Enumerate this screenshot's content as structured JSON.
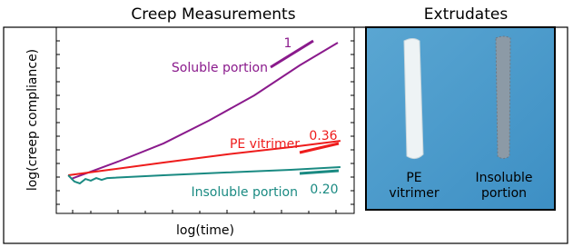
{
  "chart_data": {
    "type": "line",
    "title": "Creep Measurements",
    "xlabel": "log(time)",
    "ylabel": "log(creep compliance)",
    "xlim": [
      0,
      1
    ],
    "ylim": [
      0,
      1
    ],
    "series": [
      {
        "name": "Soluble portion",
        "color": "#8a1a8c",
        "x": [
          0.049,
          0.207,
          0.36,
          0.512,
          0.665,
          0.817,
          0.945
        ],
        "values": [
          0.185,
          0.278,
          0.376,
          0.498,
          0.634,
          0.795,
          0.917
        ]
      },
      {
        "name": "PE vitrimer",
        "color": "#ee1c1c",
        "x": [
          0.04,
          0.177,
          0.36,
          0.573,
          0.787,
          0.954
        ],
        "values": [
          0.205,
          0.234,
          0.273,
          0.317,
          0.356,
          0.39
        ]
      },
      {
        "name": "Insoluble portion",
        "color": "#1a8a82",
        "x": [
          0.04,
          0.061,
          0.079,
          0.098,
          0.116,
          0.134,
          0.152,
          0.171,
          0.36,
          0.573,
          0.787,
          0.954
        ],
        "values": [
          0.205,
          0.171,
          0.161,
          0.185,
          0.176,
          0.19,
          0.18,
          0.19,
          0.205,
          0.22,
          0.234,
          0.249
        ]
      }
    ],
    "slope_labels": [
      "1",
      "0.36",
      "0.20"
    ]
  },
  "photo_panel": {
    "title": "Extrudates",
    "labels": [
      [
        "PE",
        "vitrimer"
      ],
      [
        "Insoluble",
        "portion"
      ]
    ]
  }
}
